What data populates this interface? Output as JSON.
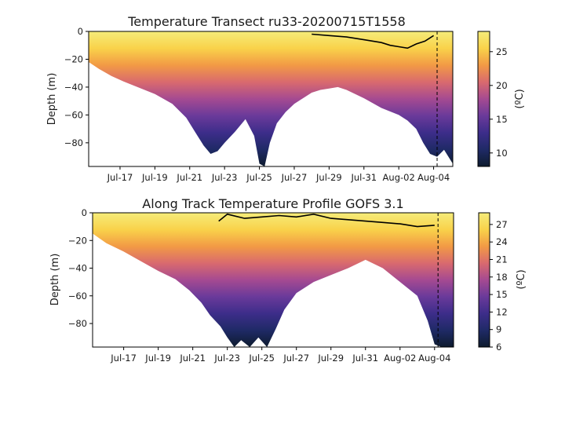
{
  "chart_data": [
    {
      "type": "heatmap",
      "title": "Temperature Transect ru33-20200715T1558",
      "ylabel": "Depth (m)",
      "colorbar_label": "(ºC)",
      "colorbar_ticks": [
        10,
        15,
        20,
        25
      ],
      "color_range": [
        8,
        28
      ],
      "x_ticks": [
        "Jul-17",
        "Jul-19",
        "Jul-21",
        "Jul-23",
        "Jul-25",
        "Jul-27",
        "Jul-29",
        "Jul-31",
        "Aug-02",
        "Aug-04"
      ],
      "x_range_days": [
        15.2,
        36.1
      ],
      "y_ticks": [
        0,
        -20,
        -40,
        -60,
        -80
      ],
      "y_range": [
        -97,
        0
      ],
      "colormap": [
        "#0d1b2e",
        "#1f2a66",
        "#3d2d8a",
        "#6a3a9a",
        "#a54a91",
        "#d96a6e",
        "#f29a45",
        "#f9d24a",
        "#f5ec7a"
      ],
      "bottom_depth_profile": {
        "days": [
          15.2,
          15.8,
          16.5,
          17.2,
          18.0,
          19.0,
          20.0,
          20.8,
          21.3,
          21.8,
          22.2,
          22.6,
          23.0,
          23.6,
          24.2,
          24.7,
          25.0,
          25.3,
          25.6,
          26.0,
          26.5,
          27.0,
          27.5,
          28.0,
          28.5,
          29.0,
          29.5,
          30.0,
          31.0,
          32.0,
          33.0,
          33.5,
          34.0,
          34.4,
          34.8,
          35.2,
          35.6,
          36.1
        ],
        "depth": [
          -22,
          -27,
          -32,
          -36,
          -40,
          -45,
          -52,
          -62,
          -72,
          -82,
          -88,
          -86,
          -80,
          -72,
          -63,
          -75,
          -95,
          -97,
          -80,
          -66,
          -58,
          -52,
          -48,
          -44,
          -42,
          -41,
          -40,
          -42,
          -48,
          -55,
          -60,
          -64,
          -70,
          -80,
          -88,
          -90,
          -85,
          -95
        ]
      },
      "mixed_layer_depth": {
        "days": [
          28.0,
          29.0,
          30.0,
          31.0,
          32.0,
          32.5,
          33.0,
          33.5,
          34.0,
          34.5,
          35.0
        ],
        "depth": [
          -2,
          -3,
          -4,
          -6,
          -8,
          -10,
          -11,
          -12,
          -9,
          -7,
          -3
        ]
      },
      "dashed_marker_day": 35.2
    },
    {
      "type": "heatmap",
      "title": "Along Track Temperature Profile GOFS 3.1",
      "ylabel": "Depth (m)",
      "colorbar_label": "(ºC)",
      "colorbar_ticks": [
        6,
        9,
        12,
        15,
        18,
        21,
        24,
        27
      ],
      "color_range": [
        6,
        29
      ],
      "x_ticks": [
        "Jul-17",
        "Jul-19",
        "Jul-21",
        "Jul-23",
        "Jul-25",
        "Jul-27",
        "Jul-29",
        "Jul-31",
        "Aug-02",
        "Aug-04"
      ],
      "x_range_days": [
        15.2,
        36.1
      ],
      "y_ticks": [
        0,
        -20,
        -40,
        -60,
        -80
      ],
      "y_range": [
        -97,
        0
      ],
      "colormap": [
        "#0d1b2e",
        "#1f2a66",
        "#3d2d8a",
        "#6a3a9a",
        "#a54a91",
        "#d96a6e",
        "#f29a45",
        "#f9d24a",
        "#f5ec7a"
      ],
      "bottom_depth_profile": {
        "days": [
          15.2,
          16.0,
          17.0,
          18.0,
          19.0,
          20.0,
          20.8,
          21.5,
          22.0,
          22.6,
          23.0,
          23.4,
          23.8,
          24.3,
          24.8,
          25.3,
          25.8,
          26.3,
          27.0,
          28.0,
          29.0,
          30.0,
          31.0,
          32.0,
          33.0,
          34.0,
          34.6,
          35.0,
          35.4,
          36.1
        ],
        "depth": [
          -15,
          -22,
          -28,
          -35,
          -42,
          -48,
          -56,
          -65,
          -74,
          -82,
          -90,
          -97,
          -92,
          -97,
          -90,
          -97,
          -84,
          -70,
          -58,
          -50,
          -45,
          -40,
          -34,
          -40,
          -50,
          -60,
          -78,
          -95,
          -97,
          -97
        ]
      },
      "mixed_layer_depth": {
        "days": [
          22.5,
          23.0,
          24.0,
          25.0,
          26.0,
          27.0,
          28.0,
          29.0,
          30.0,
          31.0,
          32.0,
          33.0,
          34.0,
          35.0
        ],
        "depth": [
          -6,
          -1,
          -4,
          -3,
          -2,
          -3,
          -1,
          -4,
          -5,
          -6,
          -7,
          -8,
          -10,
          -9
        ]
      },
      "dashed_marker_day": 35.2
    }
  ]
}
